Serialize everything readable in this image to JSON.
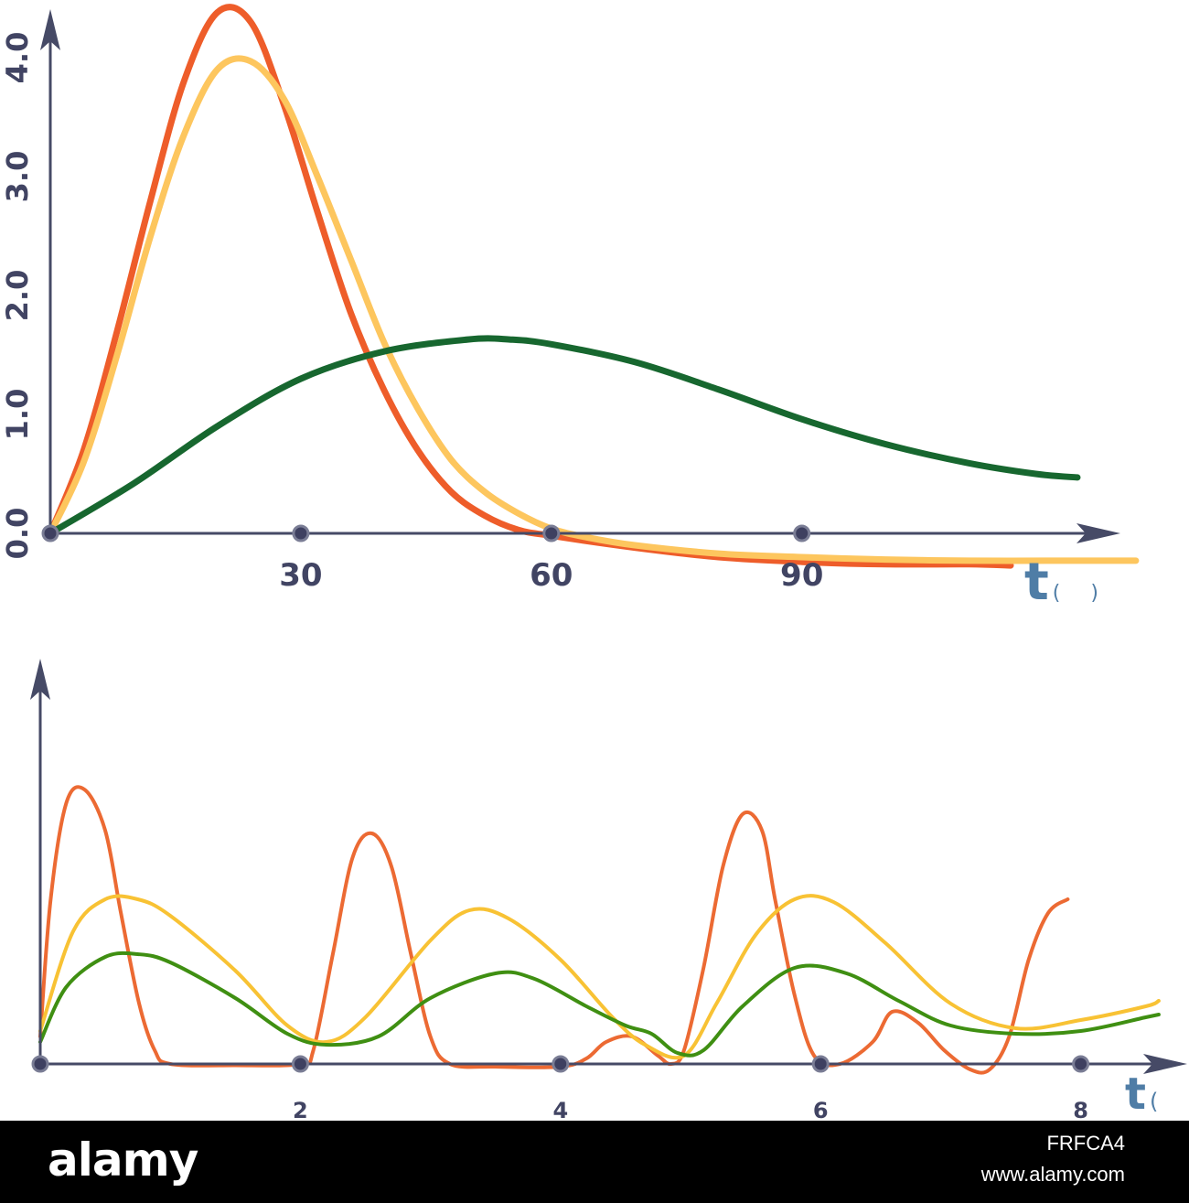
{
  "chart_data": [
    {
      "type": "line",
      "xlabel": "t( )",
      "x_ticks": [
        "30",
        "60",
        "90"
      ],
      "y_ticks": [
        "0.0",
        "1.0",
        "2.0",
        "3.0",
        "4.0"
      ],
      "xlim": [
        0,
        128
      ],
      "ylim": [
        0,
        4.4
      ],
      "grid": false,
      "series": [
        {
          "color": "#ee5d2a",
          "points": [
            [
              0,
              0
            ],
            [
              4,
              0.7
            ],
            [
              8,
              1.7
            ],
            [
              12,
              2.8
            ],
            [
              16,
              3.8
            ],
            [
              20,
              4.38
            ],
            [
              24,
              4.3
            ],
            [
              28,
              3.6
            ],
            [
              32,
              2.7
            ],
            [
              36,
              1.85
            ],
            [
              40,
              1.2
            ],
            [
              44,
              0.7
            ],
            [
              48,
              0.35
            ],
            [
              52,
              0.15
            ],
            [
              56,
              0.03
            ],
            [
              60,
              -0.02
            ],
            [
              70,
              -0.12
            ],
            [
              80,
              -0.2
            ],
            [
              90,
              -0.24
            ],
            [
              100,
              -0.26
            ],
            [
              110,
              -0.26
            ],
            [
              115,
              -0.27
            ]
          ]
        },
        {
          "color": "#fdc65e",
          "points": [
            [
              0,
              0
            ],
            [
              4,
              0.6
            ],
            [
              8,
              1.5
            ],
            [
              12,
              2.5
            ],
            [
              16,
              3.35
            ],
            [
              20,
              3.9
            ],
            [
              24,
              3.97
            ],
            [
              28,
              3.65
            ],
            [
              32,
              3.0
            ],
            [
              36,
              2.3
            ],
            [
              40,
              1.6
            ],
            [
              44,
              1.05
            ],
            [
              48,
              0.62
            ],
            [
              52,
              0.35
            ],
            [
              56,
              0.17
            ],
            [
              60,
              0.04
            ],
            [
              64,
              -0.03
            ],
            [
              70,
              -0.1
            ],
            [
              80,
              -0.17
            ],
            [
              90,
              -0.2
            ],
            [
              100,
              -0.22
            ],
            [
              110,
              -0.23
            ],
            [
              120,
              -0.23
            ],
            [
              130,
              -0.23
            ]
          ]
        },
        {
          "color": "#17672f",
          "points": [
            [
              0,
              0
            ],
            [
              10,
              0.42
            ],
            [
              20,
              0.9
            ],
            [
              30,
              1.3
            ],
            [
              40,
              1.53
            ],
            [
              50,
              1.63
            ],
            [
              55,
              1.63
            ],
            [
              60,
              1.59
            ],
            [
              70,
              1.44
            ],
            [
              80,
              1.21
            ],
            [
              90,
              0.96
            ],
            [
              100,
              0.75
            ],
            [
              110,
              0.59
            ],
            [
              118,
              0.5
            ],
            [
              123,
              0.47
            ]
          ]
        }
      ]
    },
    {
      "type": "line",
      "xlabel": "t( )",
      "x_ticks": [
        "2",
        "4",
        "6",
        "8"
      ],
      "xlim": [
        0,
        8.8
      ],
      "ylim": [
        0,
        1.18
      ],
      "grid": false,
      "series": [
        {
          "color": "#ec6a33",
          "points": [
            [
              0,
              0.1
            ],
            [
              0.08,
              0.6
            ],
            [
              0.2,
              0.95
            ],
            [
              0.34,
              1.0
            ],
            [
              0.5,
              0.85
            ],
            [
              0.62,
              0.55
            ],
            [
              0.76,
              0.22
            ],
            [
              0.88,
              0.05
            ],
            [
              1.0,
              0.0
            ],
            [
              1.5,
              -0.005
            ],
            [
              2.0,
              0.0
            ],
            [
              2.1,
              0.05
            ],
            [
              2.25,
              0.4
            ],
            [
              2.4,
              0.75
            ],
            [
              2.55,
              0.84
            ],
            [
              2.7,
              0.72
            ],
            [
              2.85,
              0.4
            ],
            [
              3.0,
              0.1
            ],
            [
              3.15,
              0.0
            ],
            [
              3.5,
              -0.01
            ],
            [
              4.0,
              -0.01
            ],
            [
              4.2,
              0.02
            ],
            [
              4.35,
              0.08
            ],
            [
              4.55,
              0.1
            ],
            [
              4.75,
              0.03
            ],
            [
              4.85,
              0.0
            ],
            [
              4.95,
              0.05
            ],
            [
              5.1,
              0.35
            ],
            [
              5.25,
              0.72
            ],
            [
              5.4,
              0.91
            ],
            [
              5.55,
              0.85
            ],
            [
              5.65,
              0.6
            ],
            [
              5.8,
              0.25
            ],
            [
              5.95,
              0.03
            ],
            [
              6.15,
              0.0
            ],
            [
              6.4,
              0.08
            ],
            [
              6.55,
              0.19
            ],
            [
              6.75,
              0.15
            ],
            [
              6.95,
              0.05
            ],
            [
              7.15,
              -0.02
            ],
            [
              7.3,
              -0.02
            ],
            [
              7.45,
              0.1
            ],
            [
              7.6,
              0.38
            ],
            [
              7.75,
              0.55
            ],
            [
              7.9,
              0.6
            ]
          ]
        },
        {
          "color": "#f8c234",
          "points": [
            [
              0,
              0.12
            ],
            [
              0.25,
              0.48
            ],
            [
              0.5,
              0.6
            ],
            [
              0.75,
              0.6
            ],
            [
              1.0,
              0.54
            ],
            [
              1.5,
              0.34
            ],
            [
              1.9,
              0.14
            ],
            [
              2.2,
              0.08
            ],
            [
              2.5,
              0.17
            ],
            [
              3.0,
              0.45
            ],
            [
              3.3,
              0.56
            ],
            [
              3.6,
              0.53
            ],
            [
              4.0,
              0.38
            ],
            [
              4.4,
              0.17
            ],
            [
              4.65,
              0.07
            ],
            [
              4.95,
              0.03
            ],
            [
              5.2,
              0.22
            ],
            [
              5.5,
              0.47
            ],
            [
              5.8,
              0.6
            ],
            [
              6.1,
              0.59
            ],
            [
              6.5,
              0.44
            ],
            [
              7.0,
              0.22
            ],
            [
              7.5,
              0.13
            ],
            [
              8.0,
              0.16
            ],
            [
              8.5,
              0.21
            ],
            [
              8.6,
              0.23
            ]
          ]
        },
        {
          "color": "#3f8f12",
          "points": [
            [
              0,
              0.08
            ],
            [
              0.2,
              0.28
            ],
            [
              0.5,
              0.39
            ],
            [
              0.75,
              0.4
            ],
            [
              1.0,
              0.37
            ],
            [
              1.5,
              0.24
            ],
            [
              1.9,
              0.11
            ],
            [
              2.2,
              0.07
            ],
            [
              2.6,
              0.1
            ],
            [
              3.0,
              0.24
            ],
            [
              3.5,
              0.33
            ],
            [
              3.8,
              0.31
            ],
            [
              4.2,
              0.21
            ],
            [
              4.5,
              0.14
            ],
            [
              4.7,
              0.11
            ],
            [
              4.9,
              0.04
            ],
            [
              5.1,
              0.05
            ],
            [
              5.4,
              0.21
            ],
            [
              5.8,
              0.35
            ],
            [
              6.2,
              0.33
            ],
            [
              6.6,
              0.23
            ],
            [
              7.0,
              0.14
            ],
            [
              7.5,
              0.11
            ],
            [
              8.0,
              0.12
            ],
            [
              8.5,
              0.17
            ],
            [
              8.6,
              0.18
            ]
          ]
        }
      ]
    }
  ],
  "footer": {
    "brand": "alamy",
    "stock_id": "FRFCA4",
    "site_url": "www.alamy.com"
  }
}
